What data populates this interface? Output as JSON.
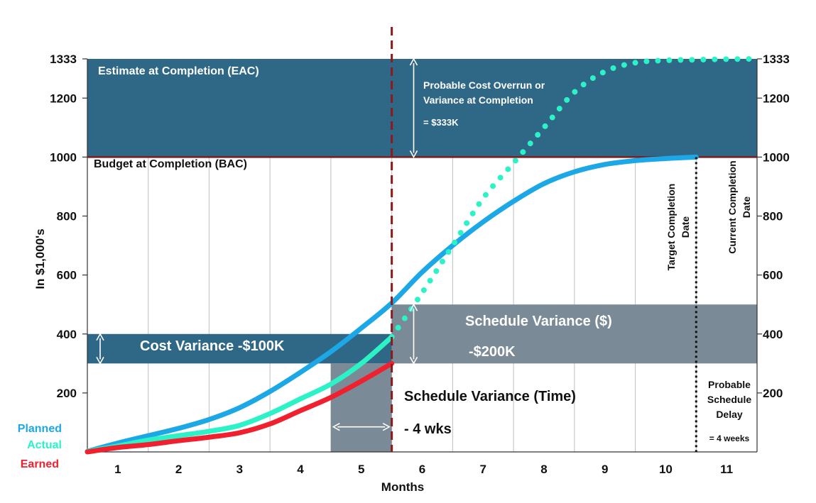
{
  "chart_data": {
    "type": "line",
    "title": "",
    "xlabel": "Months",
    "ylabel": "In $1,000's",
    "categories": [
      "1",
      "2",
      "3",
      "4",
      "5",
      "6",
      "7",
      "8",
      "9",
      "10",
      "11"
    ],
    "xlim": [
      0.5,
      11.5
    ],
    "ylim": [
      0,
      1333
    ],
    "y_ticks_left": [
      "200",
      "400",
      "600",
      "800",
      "1000",
      "1200",
      "1333"
    ],
    "y_ticks_right": [
      "200",
      "400",
      "600",
      "800",
      "1000",
      "1200",
      "1333"
    ],
    "y_tick_values": [
      200,
      400,
      600,
      800,
      1000,
      1200,
      1333
    ],
    "series": [
      {
        "name": "Planned",
        "color": "#1CA8E6",
        "style": "solid",
        "x": [
          0.5,
          1,
          1.5,
          2,
          2.5,
          3,
          3.5,
          4,
          4.5,
          5,
          5.5,
          6,
          6.5,
          7,
          7.5,
          8,
          8.5,
          9,
          9.5,
          10,
          10.5
        ],
        "y": [
          2,
          30,
          55,
          80,
          110,
          150,
          205,
          270,
          340,
          420,
          505,
          610,
          700,
          780,
          850,
          910,
          950,
          975,
          988,
          995,
          1000
        ]
      },
      {
        "name": "Actual",
        "color": "#2CF2C8",
        "style": "solid",
        "x": [
          0.5,
          1,
          1.5,
          2,
          2.5,
          3,
          3.5,
          4,
          4.5,
          5,
          5.5
        ],
        "y": [
          2,
          20,
          40,
          55,
          70,
          90,
          130,
          180,
          230,
          300,
          390
        ]
      },
      {
        "name": "Actual (forecast)",
        "color": "#2CF2C8",
        "style": "dotted",
        "x": [
          5.5,
          6,
          6.5,
          7,
          7.5,
          8,
          8.5,
          9,
          9.5,
          10,
          10.5,
          11,
          11.5
        ],
        "y": [
          390,
          540,
          700,
          860,
          980,
          1100,
          1220,
          1290,
          1320,
          1328,
          1330,
          1332,
          1333
        ]
      },
      {
        "name": "Earned",
        "color": "#F0202E",
        "style": "solid",
        "x": [
          0.5,
          1,
          1.5,
          2,
          2.5,
          3,
          3.5,
          4,
          4.5,
          5,
          5.5
        ],
        "y": [
          0,
          15,
          25,
          38,
          50,
          65,
          95,
          140,
          185,
          240,
          300
        ]
      }
    ],
    "legend": {
      "position": "bottom-left",
      "entries": [
        "Planned",
        "Actual",
        "Earned"
      ],
      "colors": [
        "#1CA8E6",
        "#2CF2C8",
        "#F0202E"
      ]
    },
    "status_date_month": 5.5,
    "bac_value": 1000,
    "eac_value": 1333,
    "regions": {
      "eac_box": {
        "label": "Estimate at Completion (EAC)",
        "y_from": 1000,
        "y_to": 1333,
        "x_from": 0.5,
        "x_to": 11.5,
        "color": "#2F6787"
      },
      "cost_variance_box": {
        "label": "Cost Variance -$100K",
        "y_from": 300,
        "y_to": 400,
        "x_from": 0.5,
        "x_to": 5.5,
        "color": "#2F6787"
      },
      "schedule_variance_box": {
        "label": "Schedule Variance ($)",
        "value_label": "-$200K",
        "y_from": 300,
        "y_to": 500,
        "x_from": 5.5,
        "x_to": 11.5,
        "color": "#7A8A96"
      },
      "schedule_time_box": {
        "y_from": 0,
        "y_to": 300,
        "x_from": 4.5,
        "x_to": 5.5,
        "color": "#7A8A96"
      }
    },
    "annotations": {
      "bac_label": "Budget at Completion (BAC)",
      "overrun_line1": "Probable  Cost Overrun or",
      "overrun_line2": "Variance at Completion",
      "overrun_value": "= $333K",
      "schedule_time_label": "Schedule Variance (Time)",
      "schedule_time_value": "- 4 wks",
      "target_line1": "Target Completion",
      "target_line2": "Date",
      "current_line1": "Current Completion",
      "current_line2": "Date",
      "delay_line1": "Probable",
      "delay_line2": "Schedule",
      "delay_line3": "Delay",
      "delay_value": "= 4 weeks",
      "target_completion_month": 10.5
    },
    "colors": {
      "bac_line": "#7A1C1C",
      "status_line": "#8B1A1A",
      "grid": "#C8C8C8",
      "axis": "#333333"
    }
  }
}
